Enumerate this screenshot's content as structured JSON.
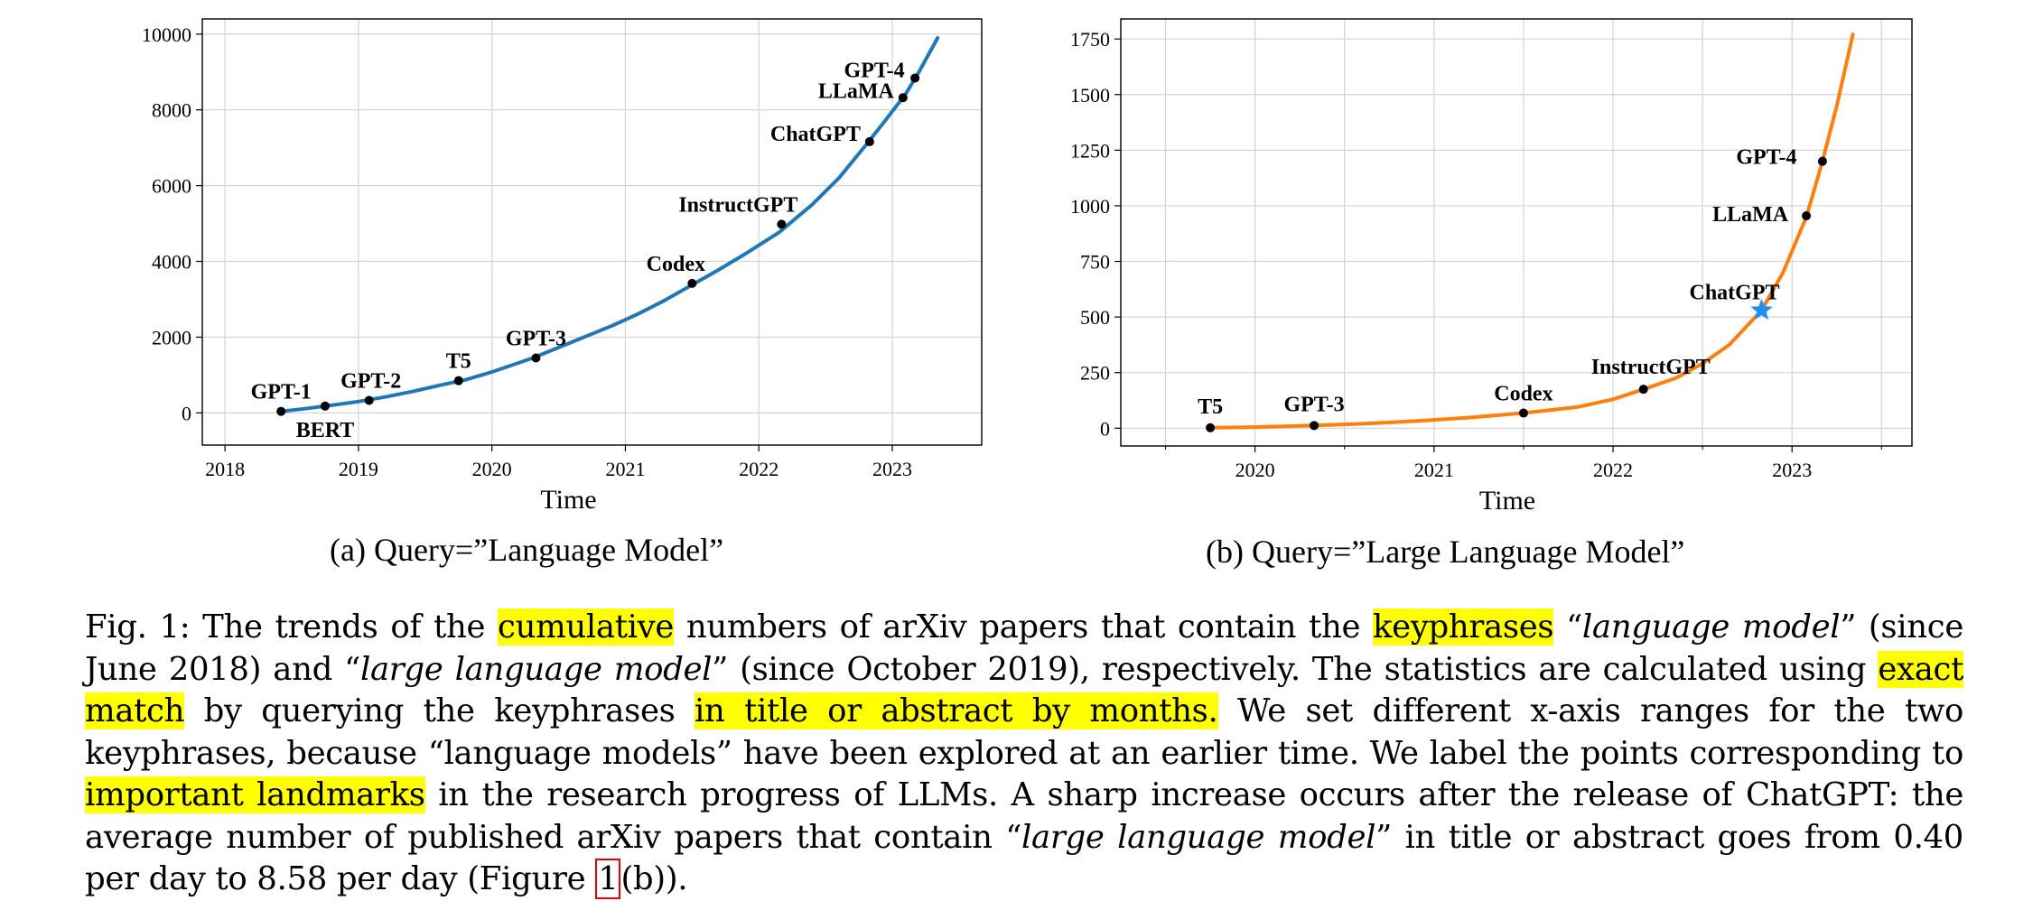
{
  "chart_data": [
    {
      "type": "line",
      "subcaption": "(a) Query=”Language Model”",
      "xlabel": "Time",
      "ylabel": "",
      "xlim": [
        2017.83,
        2023.67
      ],
      "ylim": [
        -850,
        10400
      ],
      "xticks": [
        "2018",
        "2019",
        "2020",
        "2021",
        "2022",
        "2023"
      ],
      "yticks": [
        "0",
        "2000",
        "4000",
        "6000",
        "8000",
        "10000"
      ],
      "grid": true,
      "color": "#1f77b4",
      "series": [
        {
          "x": [
            2018.42,
            2018.6,
            2018.8,
            2019.0,
            2019.2,
            2019.4,
            2019.6,
            2019.8,
            2020.0,
            2020.3,
            2020.6,
            2020.9,
            2021.1,
            2021.3,
            2021.5,
            2021.7,
            2021.9,
            2022.15,
            2022.4,
            2022.6,
            2022.8,
            2022.95,
            2023.1,
            2023.2,
            2023.34
          ],
          "y": [
            40,
            110,
            200,
            300,
            420,
            560,
            720,
            870,
            1080,
            1440,
            1870,
            2300,
            2620,
            2980,
            3380,
            3780,
            4200,
            4760,
            5500,
            6200,
            7060,
            7730,
            8420,
            9000,
            9900
          ]
        }
      ],
      "landmarks": [
        {
          "label": "GPT-1",
          "x": 2018.42,
          "y": 40
        },
        {
          "label": "BERT",
          "x": 2018.75,
          "y": 180
        },
        {
          "label": "GPT-2",
          "x": 2019.08,
          "y": 330
        },
        {
          "label": "T5",
          "x": 2019.75,
          "y": 850
        },
        {
          "label": "GPT-3",
          "x": 2020.33,
          "y": 1450
        },
        {
          "label": "Codex",
          "x": 2021.5,
          "y": 3420
        },
        {
          "label": "InstructGPT",
          "x": 2022.17,
          "y": 4980
        },
        {
          "label": "ChatGPT",
          "x": 2022.83,
          "y": 7160
        },
        {
          "label": "LLaMA",
          "x": 2023.08,
          "y": 8320
        },
        {
          "label": "GPT-4",
          "x": 2023.17,
          "y": 8840
        }
      ]
    },
    {
      "type": "line",
      "subcaption": "(b) Query=”Large Language Model”",
      "xlabel": "Time",
      "ylabel": "",
      "xlim": [
        2019.25,
        2023.67
      ],
      "ylim": [
        -80,
        1840
      ],
      "xticks": [
        "2020",
        "2021",
        "2022",
        "2023"
      ],
      "yticks": [
        "0",
        "250",
        "500",
        "750",
        "1000",
        "1250",
        "1500",
        "1750"
      ],
      "grid": true,
      "color": "#ff7f0e",
      "series": [
        {
          "x": [
            2019.75,
            2020.0,
            2020.33,
            2020.6,
            2020.9,
            2021.2,
            2021.5,
            2021.8,
            2022.0,
            2022.17,
            2022.35,
            2022.5,
            2022.65,
            2022.83,
            2022.95,
            2023.08,
            2023.17,
            2023.25,
            2023.34
          ],
          "y": [
            2,
            5,
            12,
            20,
            32,
            48,
            68,
            95,
            130,
            175,
            225,
            290,
            375,
            530,
            700,
            950,
            1200,
            1450,
            1770
          ]
        }
      ],
      "landmarks": [
        {
          "label": "T5",
          "x": 2019.75,
          "y": 2,
          "marker": "dot"
        },
        {
          "label": "GPT-3",
          "x": 2020.33,
          "y": 12,
          "marker": "dot"
        },
        {
          "label": "Codex",
          "x": 2021.5,
          "y": 68,
          "marker": "dot"
        },
        {
          "label": "InstructGPT",
          "x": 2022.17,
          "y": 175,
          "marker": "dot"
        },
        {
          "label": "ChatGPT",
          "x": 2022.83,
          "y": 530,
          "marker": "star"
        },
        {
          "label": "LLaMA",
          "x": 2023.08,
          "y": 955,
          "marker": "dot"
        },
        {
          "label": "GPT-4",
          "x": 2023.17,
          "y": 1200,
          "marker": "dot"
        }
      ]
    }
  ],
  "caption": {
    "highlight_color": "#ffff00",
    "segments": [
      {
        "text": "Fig. 1: The trends of the "
      },
      {
        "text": "cumulative",
        "hl": true
      },
      {
        "text": " numbers of arXiv papers that contain the "
      },
      {
        "text": "keyphrases",
        "hl": true
      },
      {
        "text": " “"
      },
      {
        "text": "language model",
        "it": true
      },
      {
        "text": "” (since June 2018) and “"
      },
      {
        "text": "large language model",
        "it": true
      },
      {
        "text": "” (since October 2019), respectively. The statistics are calculated using "
      },
      {
        "text": "exact match",
        "hl": true
      },
      {
        "text": " by querying the keyphrases "
      },
      {
        "text": "in title or abstract by months.",
        "hl": true
      },
      {
        "text": " We set different x-axis ranges for the two keyphrases, because “language models” have been explored at an earlier time. We label the points corresponding to "
      },
      {
        "text": "important landmarks",
        "hl": true
      },
      {
        "text": " in the research progress of LLMs. A sharp increase occurs after the release of ChatGPT: the average number of published arXiv papers that contain “"
      },
      {
        "text": "large language model",
        "it": true
      },
      {
        "text": "” in title or abstract goes from 0.40 per day to 8.58 per day (Figure "
      },
      {
        "text": "1",
        "ref": true
      },
      {
        "text": "(b))."
      }
    ]
  }
}
